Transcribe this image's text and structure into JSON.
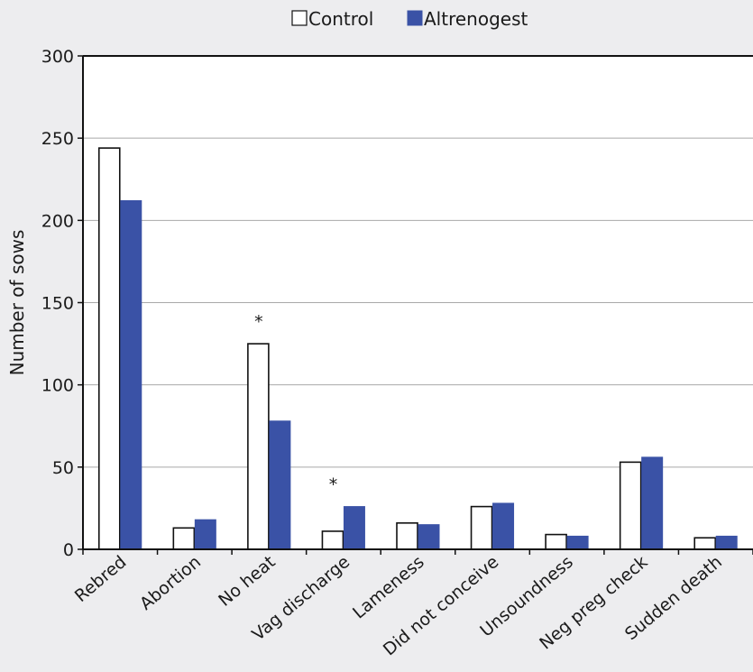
{
  "chart_data": {
    "type": "bar",
    "title": "",
    "xlabel": "",
    "ylabel": "Number of sows",
    "ylim": [
      0,
      300
    ],
    "yticks": [
      0,
      50,
      100,
      150,
      200,
      250,
      300
    ],
    "grid": true,
    "legend_position": "top-center",
    "categories": [
      "Rebred",
      "Abortion",
      "No heat",
      "Vag discharge",
      "Lameness",
      "Did not conceive",
      "Unsoundness",
      "Neg preg check",
      "Sudden death"
    ],
    "series": [
      {
        "name": "Control",
        "fill": "#ffffff",
        "stroke": "#111111",
        "values": [
          244,
          13,
          125,
          11,
          16,
          26,
          9,
          53,
          7
        ]
      },
      {
        "name": "Altrenogest",
        "fill": "#3a52a6",
        "stroke": "#3a52a6",
        "values": [
          212,
          18,
          78,
          26,
          15,
          28,
          8,
          56,
          8
        ]
      }
    ],
    "annotations": [
      {
        "category": "No heat",
        "text": "*"
      },
      {
        "category": "Vag discharge",
        "text": "*"
      }
    ]
  },
  "colors": {
    "background": "#ededef",
    "plot_background": "#ffffff",
    "gridline": "#a9a9a9",
    "axis": "#111111"
  }
}
